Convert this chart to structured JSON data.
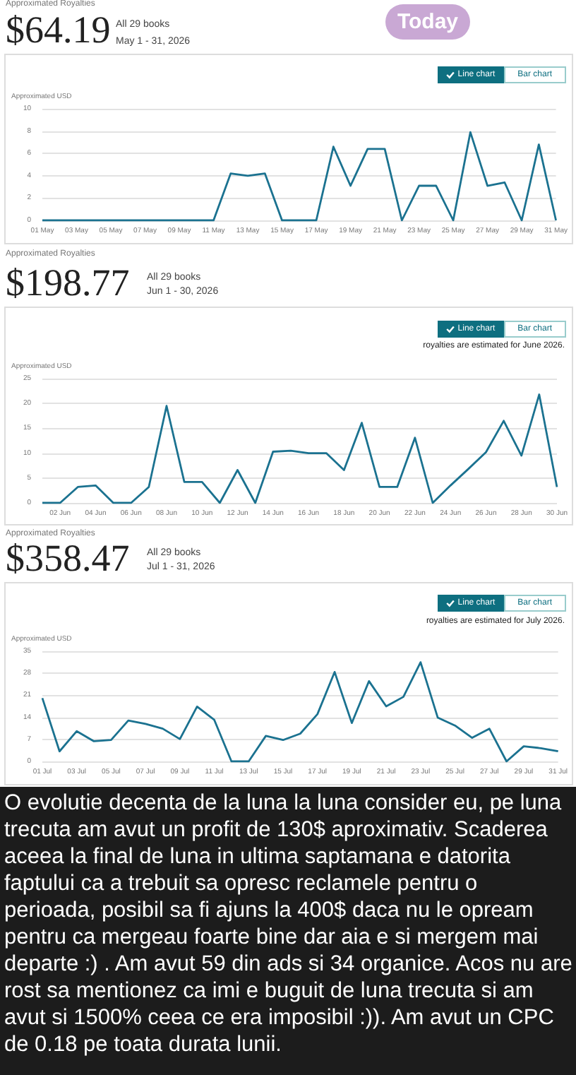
{
  "chart_data": [
    {
      "type": "line",
      "title": "$64.19",
      "subtitle": "All 29 books",
      "ylabel": "Approximated USD",
      "annotations": [
        "Approximated Royalties",
        "May 1 - 31, 2026",
        "Line chart",
        "Bar chart",
        "Today"
      ],
      "categories": [
        "01 May",
        null,
        "03 May",
        null,
        "05 May",
        null,
        "07 May",
        null,
        "09 May",
        null,
        "11 May",
        null,
        "13 May",
        null,
        "15 May",
        null,
        "17 May",
        null,
        "19 May",
        null,
        "21 May",
        null,
        "23 May",
        null,
        "25 May",
        null,
        "27 May",
        null,
        "29 May",
        null,
        "31 May"
      ],
      "values": [
        0,
        0,
        0,
        0,
        0,
        0,
        0,
        0,
        0,
        0,
        0,
        4.2,
        4.0,
        4.2,
        0,
        0,
        0,
        6.6,
        3.1,
        6.4,
        6.4,
        0,
        3.1,
        3.1,
        0,
        7.9,
        3.1,
        3.4,
        0,
        6.8,
        0
      ],
      "color": "#1b7290",
      "ylim": [
        0,
        10
      ],
      "yticks": [
        0,
        2,
        4,
        6,
        8,
        10
      ],
      "grid": "y"
    },
    {
      "type": "line",
      "title": "$198.77",
      "subtitle": "All 29 books",
      "ylabel": "Approximated USD",
      "annotations": [
        "Approximated Royalties",
        "Jun 1 - 30, 2026",
        "Line chart",
        "Bar chart",
        "royalties are estimated for June 2026."
      ],
      "categories": [
        null,
        "02 Jun",
        null,
        "04 Jun",
        null,
        "06 Jun",
        null,
        "08 Jun",
        null,
        "10 Jun",
        null,
        "12 Jun",
        null,
        "14 Jun",
        null,
        "16 Jun",
        null,
        "18 Jun",
        null,
        "20 Jun",
        null,
        "22 Jun",
        null,
        "24 Jun",
        null,
        "26 Jun",
        null,
        "28 Jun",
        null,
        "30 Jun"
      ],
      "values": [
        0,
        0,
        3.2,
        3.5,
        0,
        0,
        3.2,
        19.5,
        4.2,
        4.2,
        0,
        6.6,
        0,
        10.3,
        10.5,
        10,
        10,
        6.6,
        16.1,
        3.2,
        3.2,
        13.1,
        0,
        3.5,
        6.8,
        10.2,
        16.5,
        9.5,
        21.8,
        3.2
      ],
      "color": "#1b7290",
      "ylim": [
        0,
        25
      ],
      "yticks": [
        0,
        5,
        10,
        15,
        20,
        25
      ],
      "grid": "y"
    },
    {
      "type": "line",
      "title": "$358.47",
      "subtitle": "All 29 books",
      "ylabel": "Approximated USD",
      "annotations": [
        "Approximated Royalties",
        "Jul 1 - 31, 2026",
        "Line chart",
        "Bar chart",
        "royalties are estimated for July 2026."
      ],
      "categories": [
        "01 Jul",
        null,
        "03 Jul",
        null,
        "05 Jul",
        null,
        "07 Jul",
        null,
        "09 Jul",
        null,
        "11 Jul",
        null,
        "13 Jul",
        null,
        "15 Jul",
        null,
        "17 Jul",
        null,
        "19 Jul",
        null,
        "21 Jul",
        null,
        "23 Jul",
        null,
        "25 Jul",
        null,
        "27 Jul",
        null,
        "29 Jul",
        null,
        "31 Jul"
      ],
      "values": [
        20.1,
        3.2,
        9.6,
        6.4,
        6.8,
        13,
        11.9,
        10.4,
        7.1,
        17.4,
        13.2,
        0,
        0,
        8.1,
        6.8,
        8.8,
        15,
        28.4,
        12.2,
        25.5,
        17.5,
        20.5,
        31.5,
        13.9,
        11.4,
        7.5,
        10.4,
        0,
        4.8,
        4.2,
        3.2
      ],
      "color": "#1b7290",
      "ylim": [
        0,
        35
      ],
      "yticks": [
        0,
        7,
        14,
        21,
        28,
        35
      ],
      "grid": "y"
    },
    {
      "type": "other",
      "annotations": [
        "O evolutie decenta de la luna la luna consider eu, pe luna trecuta am avut un profit de 130$ aproximativ. Scaderea aceea la final de luna in ultima saptamana e datorita faptului ca a trebuit sa opresc reclamele pentru o perioada, posibil sa fi ajuns la 400$ daca nu le opream pentru ca mergeau foarte bine dar aia e si mergem mai departe :) . Am avut 59 din ads si 34 organice. Acos nu are rost sa mentionez ca imi e buguit de luna trecuta si am avut si 1500% ceea ce era imposibil :)). Am avut un CPC de 0.18 pe toata durata lunii."
      ]
    }
  ]
}
